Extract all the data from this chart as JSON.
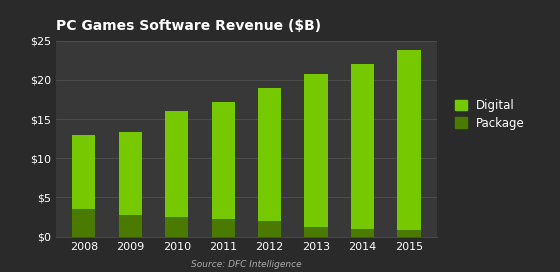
{
  "title": "PC Games Software Revenue ($B)",
  "years": [
    "2008",
    "2009",
    "2010",
    "2011",
    "2012",
    "2013",
    "2014",
    "2015"
  ],
  "digital": [
    9.5,
    10.5,
    13.5,
    15.0,
    17.0,
    19.5,
    21.0,
    23.0
  ],
  "package": [
    3.5,
    2.8,
    2.5,
    2.2,
    2.0,
    1.2,
    1.0,
    0.8
  ],
  "digital_color": "#76c800",
  "package_color": "#4a7a00",
  "background_color": "#2a2a2a",
  "axes_bg_color": "#383838",
  "text_color": "#ffffff",
  "grid_color": "#505050",
  "ylim": [
    0,
    25
  ],
  "yticks": [
    0,
    5,
    10,
    15,
    20,
    25
  ],
  "ytick_labels": [
    "$0",
    "$5",
    "$10",
    "$15",
    "$20",
    "$25"
  ],
  "source_text": "Source: DFC Intelligence",
  "legend_digital": "Digital",
  "legend_package": "Package"
}
